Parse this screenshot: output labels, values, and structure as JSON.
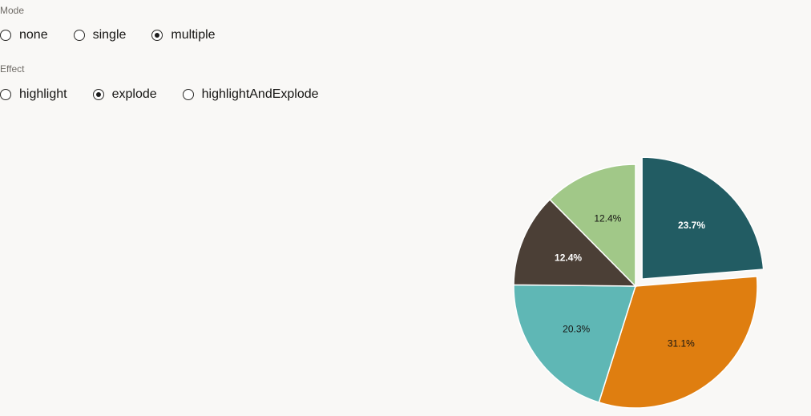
{
  "mode": {
    "label": "Mode",
    "options": [
      "none",
      "single",
      "multiple"
    ],
    "selected": "multiple"
  },
  "effect": {
    "label": "Effect",
    "options": [
      "highlight",
      "explode",
      "highlightAndExplode"
    ],
    "selected": "explode"
  },
  "chart_data": {
    "type": "pie",
    "title": "",
    "slices": [
      {
        "value": 23.7,
        "label": "23.7%",
        "color": "#225c63",
        "label_color": "#ffffff",
        "exploded": true
      },
      {
        "value": 31.1,
        "label": "31.1%",
        "color": "#df7e10",
        "label_color": "#161513",
        "exploded": false
      },
      {
        "value": 20.3,
        "label": "20.3%",
        "color": "#5fb7b5",
        "label_color": "#161513",
        "exploded": false
      },
      {
        "value": 12.4,
        "label": "12.4%",
        "color": "#4b3f36",
        "label_color": "#ffffff",
        "exploded": false
      },
      {
        "value": 12.4,
        "label": "12.4%",
        "color": "#a1c888",
        "label_color": "#161513",
        "exploded": false
      }
    ]
  }
}
